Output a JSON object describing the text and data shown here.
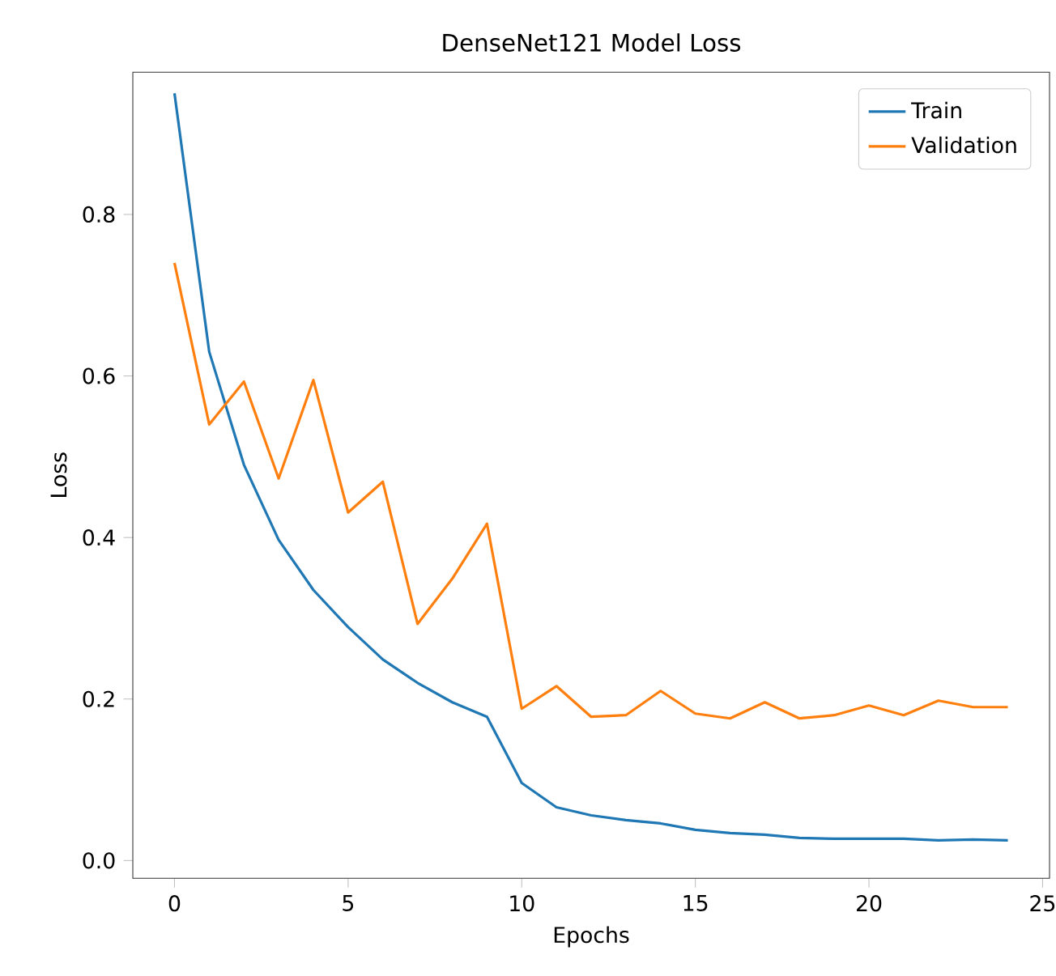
{
  "chart_data": {
    "type": "line",
    "title": "DenseNet121 Model Loss",
    "xlabel": "Epochs",
    "ylabel": "Loss",
    "x": [
      0,
      1,
      2,
      3,
      4,
      5,
      6,
      7,
      8,
      9,
      10,
      11,
      12,
      13,
      14,
      15,
      16,
      17,
      18,
      19,
      20,
      21,
      22,
      23,
      24
    ],
    "series": [
      {
        "name": "Train",
        "color": "#1f77b4",
        "values": [
          0.95,
          0.63,
          0.49,
          0.397,
          0.335,
          0.289,
          0.249,
          0.22,
          0.196,
          0.178,
          0.096,
          0.066,
          0.056,
          0.05,
          0.046,
          0.038,
          0.034,
          0.032,
          0.028,
          0.027,
          0.027,
          0.027,
          0.025,
          0.026,
          0.025
        ]
      },
      {
        "name": "Validation",
        "color": "#ff7f0e",
        "values": [
          0.74,
          0.54,
          0.593,
          0.473,
          0.595,
          0.431,
          0.469,
          0.293,
          0.349,
          0.417,
          0.188,
          0.216,
          0.178,
          0.18,
          0.21,
          0.182,
          0.176,
          0.196,
          0.176,
          0.18,
          0.192,
          0.18,
          0.198,
          0.19,
          0.19
        ]
      }
    ],
    "xlim": [
      -1.2,
      25.2
    ],
    "ylim": [
      -0.022,
      0.976
    ],
    "xticks": [
      0,
      5,
      10,
      15,
      20,
      25
    ],
    "yticks": [
      {
        "value": 0,
        "label": "0.0"
      },
      0.2,
      0.4,
      0.6,
      0.8
    ],
    "legend": "top right",
    "grid": false,
    "marker": "none",
    "line_style": "solid"
  }
}
